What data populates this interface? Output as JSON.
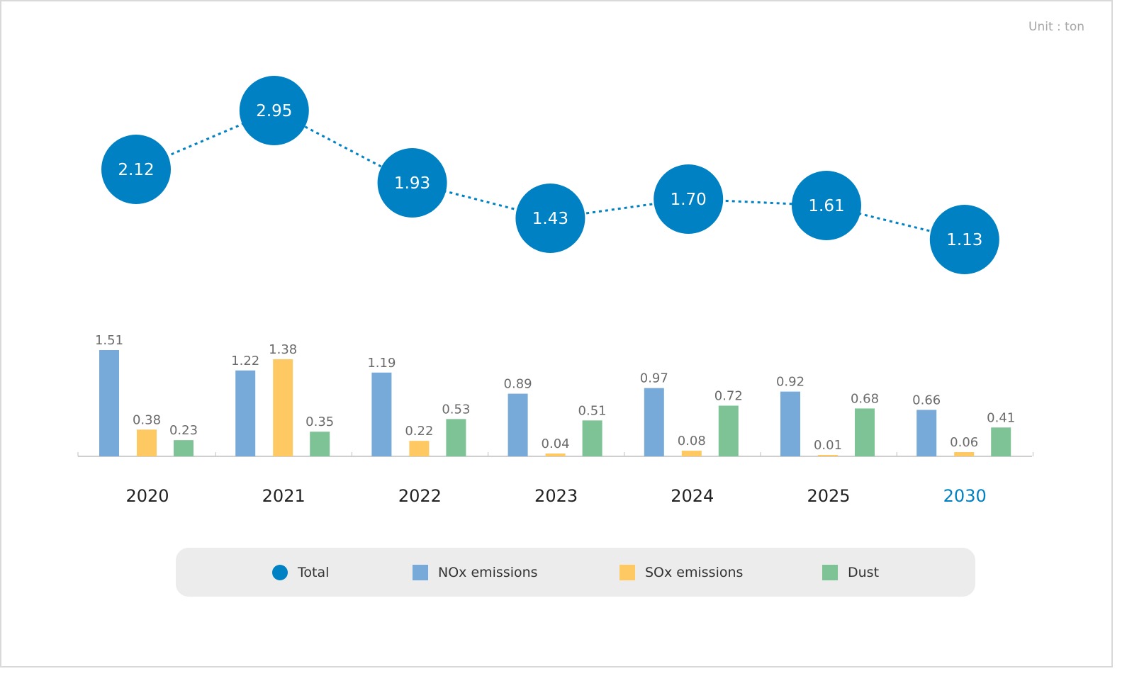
{
  "unit_label": "Unit : ton",
  "colors": {
    "total": "#0081c3",
    "nox": "#78aad9",
    "sox": "#fec863",
    "dust": "#7ec396",
    "highlight_year": "#0081c3",
    "axis": "#bfbfbf",
    "value_text": "#6b6b6b",
    "year_text": "#222222"
  },
  "legend": {
    "total": "Total",
    "nox": "NOx emissions",
    "sox": "SOx emissions",
    "dust": "Dust"
  },
  "chart_data": {
    "type": "bar",
    "title": "",
    "unit": "ton",
    "categories": [
      "2020",
      "2021",
      "2022",
      "2023",
      "2024",
      "2025",
      "2030"
    ],
    "highlight_category": "2030",
    "series": [
      {
        "name": "NOx emissions",
        "key": "nox",
        "type": "bar",
        "values": [
          1.51,
          1.22,
          1.19,
          0.89,
          0.97,
          0.92,
          0.66
        ],
        "labels": [
          "1.51",
          "1.22",
          "1.19",
          "0.89",
          "0.97",
          "0.92",
          "0.66"
        ]
      },
      {
        "name": "SOx emissions",
        "key": "sox",
        "type": "bar",
        "values": [
          0.38,
          1.38,
          0.22,
          0.04,
          0.08,
          0.01,
          0.06
        ],
        "labels": [
          "0.38",
          "1.38",
          "0.22",
          "0.04",
          "0.08",
          "0.01",
          "0.06"
        ]
      },
      {
        "name": "Dust",
        "key": "dust",
        "type": "bar",
        "values": [
          0.23,
          0.35,
          0.53,
          0.51,
          0.72,
          0.68,
          0.41
        ],
        "labels": [
          "0.23",
          "0.35",
          "0.53",
          "0.51",
          "0.72",
          "0.68",
          "0.41"
        ]
      },
      {
        "name": "Total",
        "key": "total",
        "type": "line",
        "values": [
          2.12,
          2.95,
          1.93,
          1.43,
          1.7,
          1.61,
          1.13
        ],
        "labels": [
          "2.12",
          "2.95",
          "1.93",
          "1.43",
          "1.70",
          "1.61",
          "1.13"
        ]
      }
    ],
    "bar_ylim": [
      0,
      1.51
    ],
    "line_ylim": [
      1.13,
      2.95
    ],
    "grid": false,
    "legend_position": "bottom"
  }
}
